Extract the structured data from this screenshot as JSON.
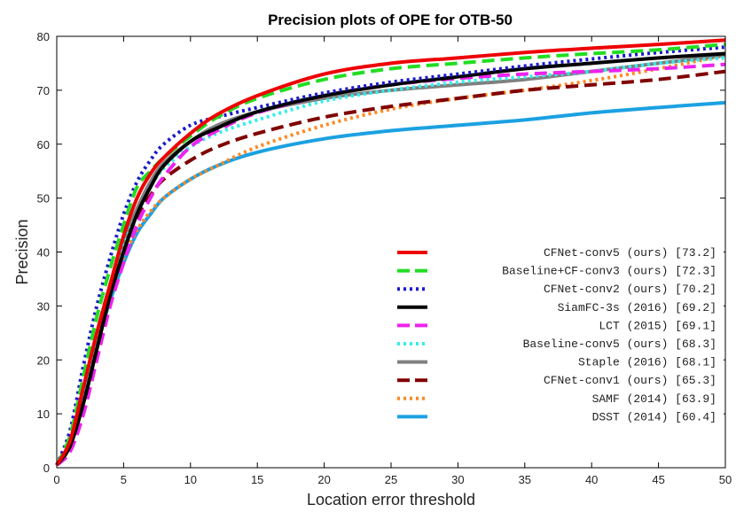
{
  "chart_data": {
    "type": "line",
    "title": "Precision plots of OPE for OTB-50",
    "xlabel": "Location error threshold",
    "ylabel": "Precision",
    "xlim": [
      0,
      50
    ],
    "ylim": [
      0,
      80
    ],
    "xticks": [
      0,
      5,
      10,
      15,
      20,
      25,
      30,
      35,
      40,
      45,
      50
    ],
    "yticks": [
      0,
      10,
      20,
      30,
      40,
      50,
      60,
      70,
      80
    ],
    "legend_position": "bottom-right",
    "x": [
      0,
      1,
      2,
      3,
      4,
      5,
      6,
      7,
      8,
      10,
      12,
      15,
      20,
      25,
      30,
      35,
      40,
      45,
      50
    ],
    "series": [
      {
        "name": "CFNet-conv5 (ours) [73.2]",
        "color": "#ee0000",
        "style": "solid",
        "values": [
          0.5,
          5,
          15,
          25,
          34,
          43,
          50,
          54.5,
          57.5,
          62,
          65.5,
          69,
          73,
          75,
          76,
          77,
          77.8,
          78.5,
          79.3
        ]
      },
      {
        "name": "Baseline+CF-conv3 (ours) [72.3]",
        "color": "#22dd22",
        "style": "dashed",
        "values": [
          0.5,
          6,
          17,
          28,
          37,
          45,
          52,
          55,
          57.5,
          61.5,
          65,
          68.5,
          72,
          74,
          75,
          76,
          76.8,
          77.5,
          78.5
        ]
      },
      {
        "name": "CFNet-conv2 (ours) [70.2]",
        "color": "#1a1acc",
        "style": "dotted",
        "values": [
          0.5,
          7,
          19,
          30,
          39,
          47,
          53,
          57,
          60,
          63.5,
          65,
          66.8,
          69.5,
          71.5,
          73,
          74.5,
          75.8,
          77,
          78
        ]
      },
      {
        "name": "SiamFC-3s (2016) [69.2]",
        "color": "#000000",
        "style": "solid",
        "values": [
          0.5,
          4,
          12,
          22,
          32,
          40,
          47,
          52,
          56,
          60.5,
          63,
          66,
          69,
          71,
          72.5,
          74,
          75,
          76,
          76.8
        ]
      },
      {
        "name": "LCT (2015) [69.1]",
        "color": "#ee22ee",
        "style": "dashed",
        "values": [
          0.5,
          3,
          10,
          20,
          30,
          38,
          45,
          50,
          54,
          59.5,
          62.5,
          65.8,
          69,
          71,
          72.2,
          73,
          73.5,
          74,
          74.8
        ]
      },
      {
        "name": "Baseline-conv5 (ours) [68.3]",
        "color": "#33eeee",
        "style": "dotted",
        "values": [
          0.5,
          5,
          14,
          24,
          33,
          41,
          47,
          52,
          55.5,
          59.5,
          62,
          64.5,
          68,
          70,
          71.5,
          72.5,
          73.5,
          75,
          76
        ]
      },
      {
        "name": "Staple (2016) [68.1]",
        "color": "#808080",
        "style": "solid",
        "values": [
          0.5,
          5,
          15,
          25,
          34,
          42,
          48,
          53,
          56.5,
          60.5,
          63.5,
          66,
          68.5,
          70,
          71,
          72,
          73.5,
          75,
          76.5
        ]
      },
      {
        "name": "CFNet-conv1 (ours) [65.3]",
        "color": "#800000",
        "style": "dashed",
        "values": [
          0.5,
          5,
          15,
          25,
          34,
          41,
          46.5,
          50.5,
          53.5,
          57,
          59.5,
          62,
          65,
          67,
          68.5,
          70,
          71,
          72,
          73.5
        ]
      },
      {
        "name": "SAMF (2014) [63.9]",
        "color": "#ff8822",
        "style": "dotted",
        "values": [
          0.5,
          4,
          13,
          23,
          32,
          39,
          44,
          47.5,
          50,
          53.5,
          56,
          59.5,
          63.5,
          66.5,
          68.5,
          70,
          71.8,
          74,
          76.5
        ]
      },
      {
        "name": "DSST (2014) [60.4]",
        "color": "#1ba1e2",
        "style": "solid",
        "values": [
          0.5,
          5,
          14,
          23,
          31,
          38,
          43.5,
          47,
          50,
          53.5,
          56,
          58.5,
          61,
          62.5,
          63.5,
          64.5,
          65.8,
          66.8,
          67.7
        ]
      }
    ]
  }
}
